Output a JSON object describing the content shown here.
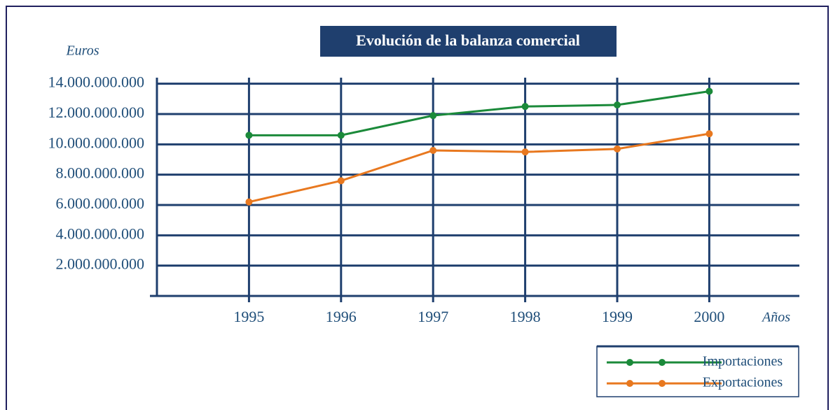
{
  "chart_data": {
    "type": "line",
    "title": "Evolución de la balanza comercial",
    "y_label": "Euros",
    "x_label": "Años",
    "categories": [
      "1995",
      "1996",
      "1997",
      "1998",
      "1999",
      "2000"
    ],
    "series": [
      {
        "name": "Importaciones",
        "color": "#1b8a3a",
        "values": [
          10600000000,
          10600000000,
          11900000000,
          12500000000,
          12600000000,
          13500000000
        ]
      },
      {
        "name": "Exportaciones",
        "color": "#e8781f",
        "values": [
          6200000000,
          7600000000,
          9600000000,
          9500000000,
          9700000000,
          10700000000
        ]
      }
    ],
    "ylim": [
      0,
      14400000000
    ],
    "yticks": [
      {
        "value": 2000000000,
        "label": "2.000.000.000"
      },
      {
        "value": 4000000000,
        "label": "4.000.000.000"
      },
      {
        "value": 6000000000,
        "label": "6.000.000.000"
      },
      {
        "value": 8000000000,
        "label": "8.000.000.000"
      },
      {
        "value": 10000000000,
        "label": "10.000.000.000"
      },
      {
        "value": 12000000000,
        "label": "12.000.000.000"
      },
      {
        "value": 14000000000,
        "label": "14.000.000.000"
      }
    ],
    "grid": true,
    "legend": "lower right"
  }
}
